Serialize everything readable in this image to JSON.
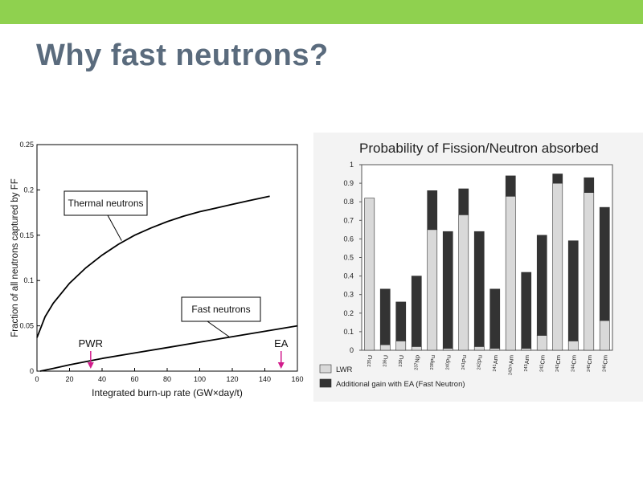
{
  "slide": {
    "title": "Why fast neutrons?"
  },
  "colors": {
    "accent_bar": "#8fd14f",
    "title": "#5a6b7d",
    "marker": "#d21c8c",
    "lwr": "#d9d9d9",
    "fast_gain": "#333333"
  },
  "chart_data": [
    {
      "type": "line",
      "xlabel": "Integrated burn-up rate (GW×day/t)",
      "ylabel": "Fraction of all neutrons captured by FF",
      "xlim": [
        0,
        160
      ],
      "ylim": [
        0,
        0.25
      ],
      "xticks": [
        "0",
        "20",
        "40",
        "60",
        "80",
        "100",
        "120",
        "140",
        "160"
      ],
      "yticks": [
        "0",
        "0.05",
        "0.1",
        "0.15",
        "0.2",
        "0.25"
      ],
      "grid": false,
      "series": [
        {
          "name": "Thermal neutrons",
          "x": [
            0,
            5,
            10,
            20,
            30,
            40,
            50,
            60,
            70,
            80,
            90,
            100,
            110,
            120,
            130,
            143
          ],
          "y": [
            0.037,
            0.06,
            0.075,
            0.097,
            0.114,
            0.128,
            0.14,
            0.15,
            0.158,
            0.165,
            0.171,
            0.176,
            0.18,
            0.184,
            0.188,
            0.193
          ]
        },
        {
          "name": "Fast neutrons",
          "x": [
            2,
            10,
            20,
            40,
            60,
            80,
            100,
            120,
            140,
            160
          ],
          "y": [
            0,
            0.003,
            0.007,
            0.014,
            0.02,
            0.026,
            0.032,
            0.038,
            0.044,
            0.05
          ]
        }
      ],
      "annotations": [
        {
          "label": "PWR",
          "x": 33
        },
        {
          "label": "EA",
          "x": 150
        }
      ]
    },
    {
      "type": "bar",
      "stacked": true,
      "title": "Probability of Fission/Neutron absorbed",
      "ylim": [
        0,
        1
      ],
      "yticks": [
        "0",
        "0.1",
        "0.2",
        "0.3",
        "0.4",
        "0.5",
        "0.6",
        "0.7",
        "0.8",
        "0.9",
        "1"
      ],
      "grid": false,
      "categories": [
        {
          "mass": "235",
          "el": "U"
        },
        {
          "mass": "236",
          "el": "U"
        },
        {
          "mass": "238",
          "el": "U"
        },
        {
          "mass": "237",
          "el": "Np"
        },
        {
          "mass": "238",
          "el": "Pu"
        },
        {
          "mass": "240",
          "el": "Pu"
        },
        {
          "mass": "241",
          "el": "Pu"
        },
        {
          "mass": "242",
          "el": "Pu"
        },
        {
          "mass": "241",
          "el": "Am"
        },
        {
          "mass": "242m",
          "el": "Am"
        },
        {
          "mass": "243",
          "el": "Am"
        },
        {
          "mass": "242",
          "el": "Cm"
        },
        {
          "mass": "243",
          "el": "Cm"
        },
        {
          "mass": "244",
          "el": "Cm"
        },
        {
          "mass": "245",
          "el": "Cm"
        },
        {
          "mass": "246",
          "el": "Cm"
        }
      ],
      "series": [
        {
          "name": "LWR",
          "values": [
            0.82,
            0.03,
            0.05,
            0.02,
            0.65,
            0.01,
            0.73,
            0.02,
            0.01,
            0.83,
            0.01,
            0.08,
            0.9,
            0.05,
            0.85,
            0.16
          ]
        },
        {
          "name": "Additional gain with EA (Fast Neutron)",
          "values": [
            0.0,
            0.3,
            0.21,
            0.38,
            0.21,
            0.63,
            0.14,
            0.62,
            0.32,
            0.11,
            0.41,
            0.54,
            0.05,
            0.54,
            0.08,
            0.61
          ]
        }
      ],
      "legend_position": "bottom-left"
    }
  ]
}
